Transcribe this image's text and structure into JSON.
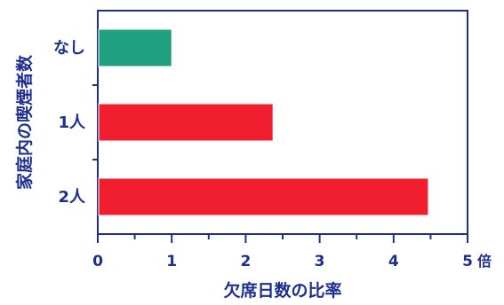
{
  "chart_data": {
    "type": "bar",
    "orientation": "horizontal",
    "categories": [
      "なし",
      "1人",
      "2人"
    ],
    "values": [
      1.0,
      2.37,
      4.47
    ],
    "bar_colors": [
      "#1fa07e",
      "#f01e2e",
      "#f01e2e"
    ],
    "xlabel": "欠席日数の比率",
    "ylabel": "家庭内の喫煙者数",
    "x_unit": "倍",
    "xlim": [
      0,
      5
    ],
    "xticks": [
      "0",
      "1",
      "2",
      "3",
      "4",
      "5"
    ],
    "grid": false,
    "axis_color": "#1e2f8f",
    "text_color": "#1e2f8f"
  }
}
